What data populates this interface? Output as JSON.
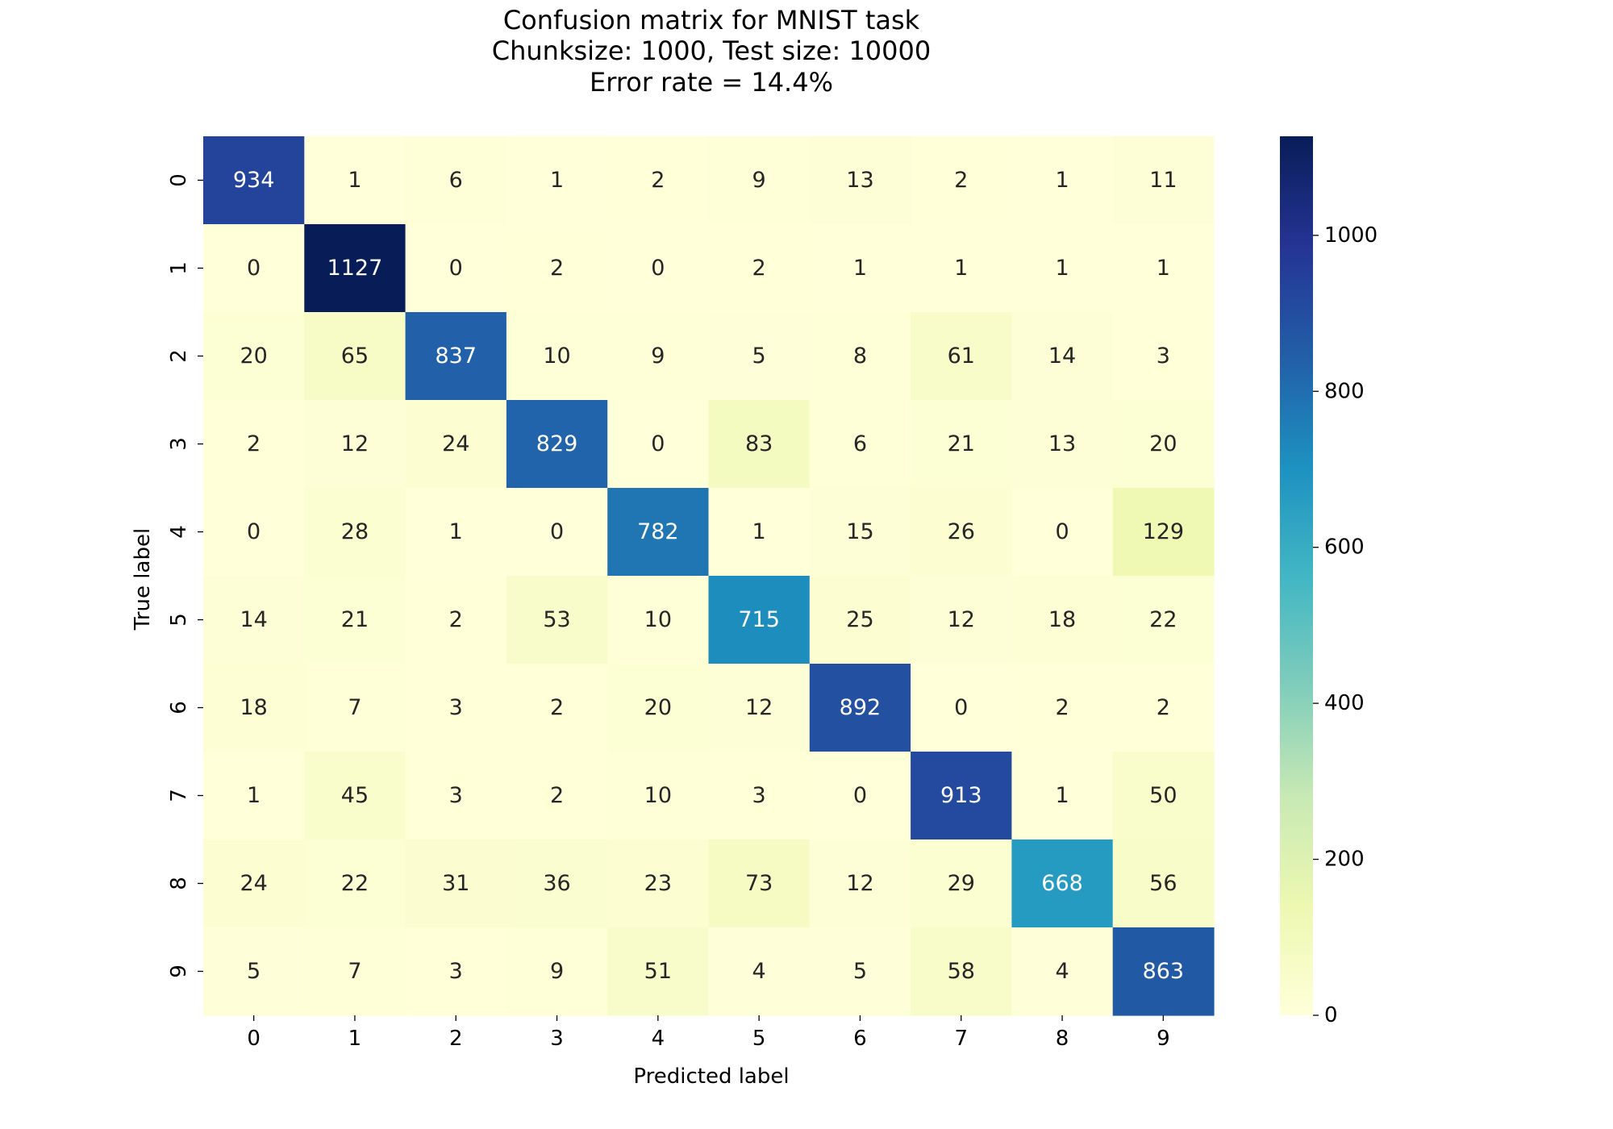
{
  "chart_data": {
    "type": "heatmap",
    "title_lines": [
      "Confusion matrix for MNIST task",
      "Chunksize: 1000, Test size: 10000",
      "Error rate = 14.4%"
    ],
    "xlabel": "Predicted label",
    "ylabel": "True label",
    "x_categories": [
      "0",
      "1",
      "2",
      "3",
      "4",
      "5",
      "6",
      "7",
      "8",
      "9"
    ],
    "y_categories": [
      "0",
      "1",
      "2",
      "3",
      "4",
      "5",
      "6",
      "7",
      "8",
      "9"
    ],
    "matrix": [
      [
        934,
        1,
        6,
        1,
        2,
        9,
        13,
        2,
        1,
        11
      ],
      [
        0,
        1127,
        0,
        2,
        0,
        2,
        1,
        1,
        1,
        1
      ],
      [
        20,
        65,
        837,
        10,
        9,
        5,
        8,
        61,
        14,
        3
      ],
      [
        2,
        12,
        24,
        829,
        0,
        83,
        6,
        21,
        13,
        20
      ],
      [
        0,
        28,
        1,
        0,
        782,
        1,
        15,
        26,
        0,
        129
      ],
      [
        14,
        21,
        2,
        53,
        10,
        715,
        25,
        12,
        18,
        22
      ],
      [
        18,
        7,
        3,
        2,
        20,
        12,
        892,
        0,
        2,
        2
      ],
      [
        1,
        45,
        3,
        2,
        10,
        3,
        0,
        913,
        1,
        50
      ],
      [
        24,
        22,
        31,
        36,
        23,
        73,
        12,
        29,
        668,
        56
      ],
      [
        5,
        7,
        3,
        9,
        51,
        4,
        5,
        58,
        4,
        863
      ]
    ],
    "colormap": "YlGnBu",
    "colormap_stops": [
      "#ffffd9",
      "#edf8b1",
      "#c7e9b4",
      "#7fcdbb",
      "#41b6c4",
      "#1d91c0",
      "#225ea8",
      "#253494",
      "#081d58"
    ],
    "colorbar": {
      "vmin": 0,
      "vmax": 1127,
      "ticks": [
        0,
        200,
        400,
        600,
        800,
        1000
      ],
      "tick_labels": [
        "0",
        "200",
        "400",
        "600",
        "800",
        "1000"
      ]
    },
    "grid": false,
    "legend": "colorbar-right"
  }
}
